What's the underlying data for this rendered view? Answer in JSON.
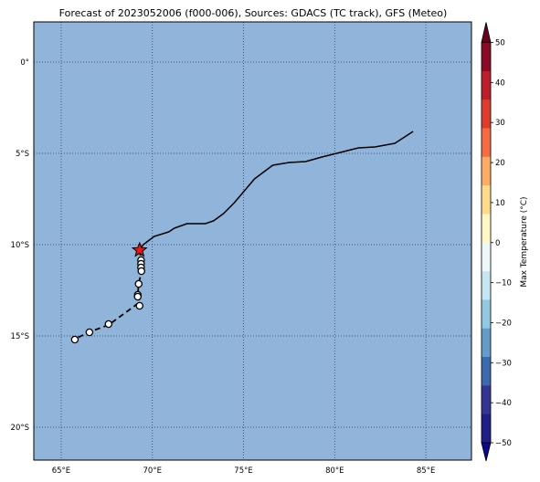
{
  "title": "Forecast of 2023052006 (f000-006), Sources: GDACS (TC track), GFS (Meteo)",
  "map": {
    "lon_range": [
      63.5,
      87.5
    ],
    "lat_range": [
      -21.8,
      2.2
    ],
    "ocean_color": "#91b5da",
    "grid": "dotted",
    "x_ticks": [
      {
        "value": 65,
        "label": "65°E"
      },
      {
        "value": 70,
        "label": "70°E"
      },
      {
        "value": 75,
        "label": "75°E"
      },
      {
        "value": 80,
        "label": "80°E"
      },
      {
        "value": 85,
        "label": "85°E"
      }
    ],
    "y_ticks": [
      {
        "value": 0,
        "label": "0°"
      },
      {
        "value": -5,
        "label": "5°S"
      },
      {
        "value": -10,
        "label": "10°S"
      },
      {
        "value": -15,
        "label": "15°S"
      },
      {
        "value": -20,
        "label": "20°S"
      }
    ]
  },
  "chart_data": {
    "type": "map",
    "forecast_track": [
      [
        84.3,
        -3.8
      ],
      [
        83.3,
        -4.45
      ],
      [
        82.2,
        -4.65
      ],
      [
        81.3,
        -4.7
      ],
      [
        80.3,
        -4.95
      ],
      [
        79.3,
        -5.2
      ],
      [
        78.4,
        -5.45
      ],
      [
        77.5,
        -5.5
      ],
      [
        76.6,
        -5.65
      ],
      [
        75.6,
        -6.4
      ],
      [
        74.5,
        -7.7
      ],
      [
        73.9,
        -8.3
      ],
      [
        73.35,
        -8.7
      ],
      [
        72.9,
        -8.85
      ],
      [
        71.9,
        -8.85
      ],
      [
        71.2,
        -9.1
      ],
      [
        70.9,
        -9.3
      ],
      [
        70.1,
        -9.55
      ],
      [
        69.5,
        -10.0
      ],
      [
        69.3,
        -10.3
      ]
    ],
    "observed_track": [
      [
        69.3,
        -10.3
      ],
      [
        69.38,
        -10.8
      ],
      [
        69.38,
        -11.3
      ],
      [
        69.4,
        -11.6
      ],
      [
        69.25,
        -12.05
      ],
      [
        69.2,
        -12.8
      ],
      [
        69.3,
        -13.15
      ],
      [
        68.9,
        -13.45
      ],
      [
        67.6,
        -14.4
      ],
      [
        66.5,
        -14.8
      ],
      [
        65.7,
        -15.2
      ]
    ],
    "storm_positions": [
      [
        69.38,
        -10.85
      ],
      [
        69.38,
        -11.05
      ],
      [
        69.38,
        -11.25
      ],
      [
        69.4,
        -11.45
      ],
      [
        69.25,
        -12.15
      ],
      [
        69.2,
        -12.75
      ],
      [
        69.2,
        -12.85
      ],
      [
        69.3,
        -13.35
      ],
      [
        67.6,
        -14.35
      ],
      [
        66.55,
        -14.8
      ],
      [
        65.75,
        -15.2
      ]
    ],
    "current_position": [
      69.3,
      -10.3
    ],
    "current_marker_color": "#e8161b"
  },
  "colorbar": {
    "label": "Max Temperature (°C)",
    "ticks": [
      "50",
      "40",
      "30",
      "20",
      "10",
      "0",
      "−10",
      "−20",
      "−30",
      "−40",
      "−50"
    ],
    "colors_top_to_bottom": [
      "#8b0a26",
      "#bc1e2c",
      "#dd3d2c",
      "#f46b44",
      "#fcac64",
      "#fedb8b",
      "#fff7c6",
      "#eef8f9",
      "#c6e7f1",
      "#93c8e1",
      "#649bc8",
      "#3c6aae",
      "#323594",
      "#1f1f87"
    ],
    "arrow_top_color": "#67001f",
    "arrow_bottom_color": "#0a0a8a"
  }
}
